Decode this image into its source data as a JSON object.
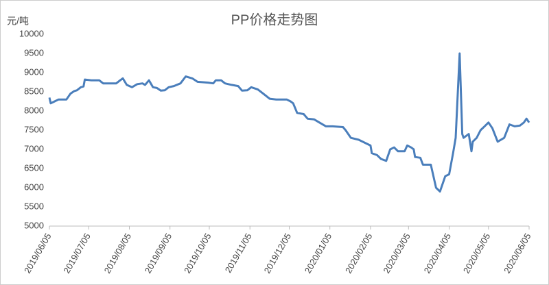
{
  "chart_data": {
    "type": "line",
    "title": "PP价格走势图",
    "y_label": "元/吨",
    "x": [
      "2019/06/05",
      "2019/06/06",
      "2019/06/09",
      "2019/06/12",
      "2019/06/18",
      "2019/06/21",
      "2019/06/24",
      "2019/06/26",
      "2019/06/29",
      "2019/07/01",
      "2019/07/02",
      "2019/07/07",
      "2019/07/13",
      "2019/07/16",
      "2019/07/26",
      "2019/07/29",
      "2019/07/31",
      "2019/08/03",
      "2019/08/07",
      "2019/08/11",
      "2019/08/15",
      "2019/08/17",
      "2019/08/20",
      "2019/08/23",
      "2019/08/26",
      "2019/08/29",
      "2019/09/01",
      "2019/09/04",
      "2019/09/08",
      "2019/09/13",
      "2019/09/17",
      "2019/09/22",
      "2019/09/26",
      "2019/10/04",
      "2019/10/08",
      "2019/10/10",
      "2019/10/14",
      "2019/10/17",
      "2019/10/22",
      "2019/10/27",
      "2019/10/30",
      "2019/11/03",
      "2019/11/06",
      "2019/11/11",
      "2019/11/16",
      "2019/11/20",
      "2019/11/25",
      "2019/12/03",
      "2019/12/06",
      "2019/12/08",
      "2019/12/11",
      "2019/12/16",
      "2019/12/19",
      "2019/12/24",
      "2019/12/28",
      "2020/01/02",
      "2020/01/07",
      "2020/01/15",
      "2020/01/17",
      "2020/01/21",
      "2020/01/27",
      "2020/02/02",
      "2020/02/05",
      "2020/02/06",
      "2020/02/10",
      "2020/02/13",
      "2020/02/17",
      "2020/02/20",
      "2020/02/23",
      "2020/02/26",
      "2020/03/02",
      "2020/03/04",
      "2020/03/07",
      "2020/03/09",
      "2020/03/10",
      "2020/03/14",
      "2020/03/16",
      "2020/03/22",
      "2020/03/24",
      "2020/03/26",
      "2020/03/29",
      "2020/04/02",
      "2020/04/05",
      "2020/04/08",
      "2020/04/10",
      "2020/04/13",
      "2020/04/15",
      "2020/04/16",
      "2020/04/20",
      "2020/04/22",
      "2020/04/23",
      "2020/04/26",
      "2020/04/29",
      "2020/05/02",
      "2020/05/05",
      "2020/05/08",
      "2020/05/12",
      "2020/05/17",
      "2020/05/21",
      "2020/05/25",
      "2020/05/29",
      "2020/06/01",
      "2020/06/03",
      "2020/06/05"
    ],
    "values": [
      8350,
      8200,
      8250,
      8300,
      8300,
      8450,
      8520,
      8540,
      8620,
      8640,
      8820,
      8800,
      8800,
      8720,
      8720,
      8800,
      8850,
      8680,
      8620,
      8700,
      8720,
      8680,
      8800,
      8620,
      8600,
      8530,
      8540,
      8620,
      8650,
      8720,
      8900,
      8850,
      8760,
      8740,
      8720,
      8800,
      8800,
      8720,
      8680,
      8650,
      8530,
      8540,
      8620,
      8560,
      8430,
      8320,
      8300,
      8300,
      8250,
      8200,
      7950,
      7920,
      7800,
      7780,
      7700,
      7600,
      7600,
      7580,
      7500,
      7300,
      7250,
      7150,
      7100,
      6900,
      6850,
      6750,
      6700,
      7000,
      7050,
      6950,
      6950,
      7100,
      7050,
      7000,
      6800,
      6780,
      6600,
      6600,
      6300,
      6000,
      5900,
      6300,
      6350,
      6900,
      7300,
      9500,
      7400,
      7300,
      7400,
      6950,
      7200,
      7300,
      7500,
      7600,
      7700,
      7550,
      7200,
      7300,
      7650,
      7600,
      7620,
      7700,
      7800,
      7700
    ],
    "color": "#4a7ebb",
    "xlim": [
      "2019/06/05",
      "2020/06/05"
    ],
    "xticks": [
      "2019/06/05",
      "2019/07/05",
      "2019/08/05",
      "2019/09/05",
      "2019/10/05",
      "2019/11/05",
      "2019/12/05",
      "2020/01/05",
      "2020/02/05",
      "2020/03/05",
      "2020/04/05",
      "2020/05/05",
      "2020/06/05"
    ],
    "ylim": [
      5000,
      10000
    ],
    "yticks": [
      5000,
      5500,
      6000,
      6500,
      7000,
      7500,
      8000,
      8500,
      9000,
      9500,
      10000
    ],
    "grid": false
  }
}
